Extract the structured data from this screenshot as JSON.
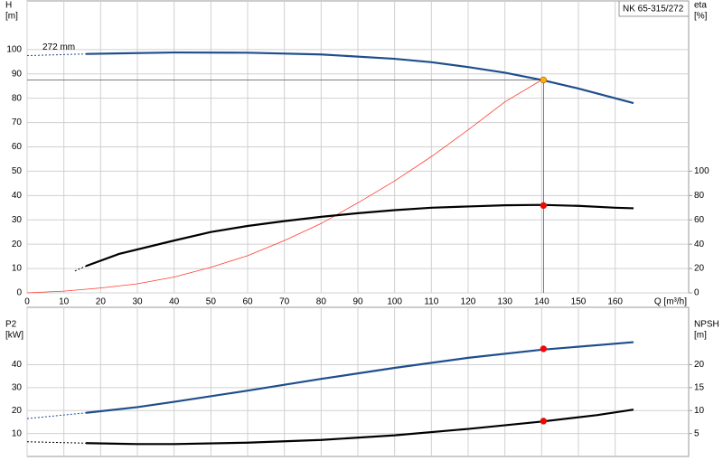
{
  "chart_data": [
    {
      "type": "line",
      "title": "NK 65-315/272",
      "ylabel": "H",
      "yunit": "[m]",
      "y2label": "eta",
      "y2unit": "[%]",
      "xlabel": "Q [m³/h]",
      "annotation": "272 mm",
      "xlim": [
        0,
        180
      ],
      "xticks": [
        0,
        10,
        20,
        30,
        40,
        50,
        60,
        70,
        80,
        90,
        100,
        110,
        120,
        130,
        140,
        150,
        160
      ],
      "ylim": [
        0,
        120
      ],
      "yticks": [
        0,
        10,
        20,
        30,
        40,
        50,
        60,
        70,
        80,
        90,
        100
      ],
      "y2lim": [
        0,
        240
      ],
      "y2ticks": [
        0,
        20,
        40,
        60,
        80,
        100
      ],
      "grid": true,
      "show_xtick_labels": true,
      "series": [
        {
          "color": "#1f4e8c",
          "dash": true,
          "width": 1,
          "x": [
            0,
            16
          ],
          "values": [
            97.5,
            98.2
          ]
        },
        {
          "color": "#1f4e8c",
          "width": 2.2,
          "x": [
            16,
            40,
            60,
            80,
            100,
            110,
            120,
            130,
            140,
            150,
            165
          ],
          "values": [
            98.2,
            98.8,
            98.7,
            98,
            96.2,
            94.8,
            92.8,
            90.5,
            87.5,
            84,
            78
          ]
        },
        {
          "color": "#ff3b30",
          "width": 0.8,
          "x": [
            0,
            10,
            20,
            30,
            40,
            50,
            60,
            70,
            80,
            90,
            100,
            110,
            120,
            130,
            140
          ],
          "values": [
            0,
            0.7,
            2,
            3.7,
            6.5,
            10.5,
            15.3,
            21.5,
            28.5,
            37,
            46,
            56,
            67,
            78.5,
            87.5
          ]
        },
        {
          "color": "#000000",
          "dash": true,
          "width": 1,
          "axis": "y2",
          "x": [
            13,
            16
          ],
          "values": [
            18,
            22
          ]
        },
        {
          "color": "#000000",
          "width": 2.2,
          "axis": "y2",
          "x": [
            16,
            25,
            40,
            50,
            60,
            70,
            80,
            90,
            100,
            110,
            120,
            130,
            140,
            150,
            160,
            165
          ],
          "values": [
            22,
            32,
            43,
            50,
            55,
            59,
            62.5,
            65.5,
            68,
            70,
            71,
            72,
            72.3,
            71.5,
            70,
            69.5
          ]
        },
        {
          "color": "#f5b400",
          "marker": true,
          "guides": true,
          "x": [
            140.5
          ],
          "values": [
            87.5
          ]
        },
        {
          "color": "#ff0000",
          "marker": true,
          "axis": "y2",
          "x": [
            140.5
          ],
          "values": [
            71.8
          ]
        }
      ]
    },
    {
      "type": "line",
      "ylabel": "P2",
      "yunit": "[kW]",
      "y2label": "NPSH",
      "y2unit": "[m]",
      "xlim": [
        0,
        180
      ],
      "xticks": [
        0,
        10,
        20,
        30,
        40,
        50,
        60,
        70,
        80,
        90,
        100,
        110,
        120,
        130,
        140,
        150,
        160
      ],
      "ylim": [
        0,
        65
      ],
      "yticks": [
        10,
        20,
        30,
        40
      ],
      "y2lim": [
        0,
        32.5
      ],
      "y2ticks": [
        5,
        10,
        15,
        20
      ],
      "grid": true,
      "show_xtick_labels": false,
      "series": [
        {
          "color": "#1f4e8c",
          "dash": true,
          "width": 1,
          "x": [
            0,
            16
          ],
          "values": [
            16.5,
            19
          ]
        },
        {
          "color": "#1f4e8c",
          "width": 2.2,
          "x": [
            16,
            30,
            40,
            60,
            80,
            100,
            120,
            140,
            165
          ],
          "values": [
            19,
            21.5,
            23.8,
            28.7,
            33.8,
            38.6,
            43,
            46.5,
            49.8
          ]
        },
        {
          "color": "#000000",
          "dash": true,
          "width": 1,
          "axis": "y2",
          "x": [
            0,
            16
          ],
          "values": [
            3.2,
            2.9
          ]
        },
        {
          "color": "#000000",
          "width": 2.2,
          "axis": "y2",
          "x": [
            16,
            30,
            40,
            60,
            80,
            100,
            120,
            140,
            155,
            165
          ],
          "values": [
            2.9,
            2.7,
            2.7,
            3.0,
            3.6,
            4.6,
            6.0,
            7.6,
            9.0,
            10.2
          ]
        },
        {
          "color": "#ff0000",
          "marker": true,
          "x": [
            140.5
          ],
          "values": [
            46.9
          ]
        },
        {
          "color": "#ff0000",
          "marker": true,
          "axis": "y2",
          "x": [
            140.5
          ],
          "values": [
            7.7
          ]
        }
      ]
    }
  ]
}
